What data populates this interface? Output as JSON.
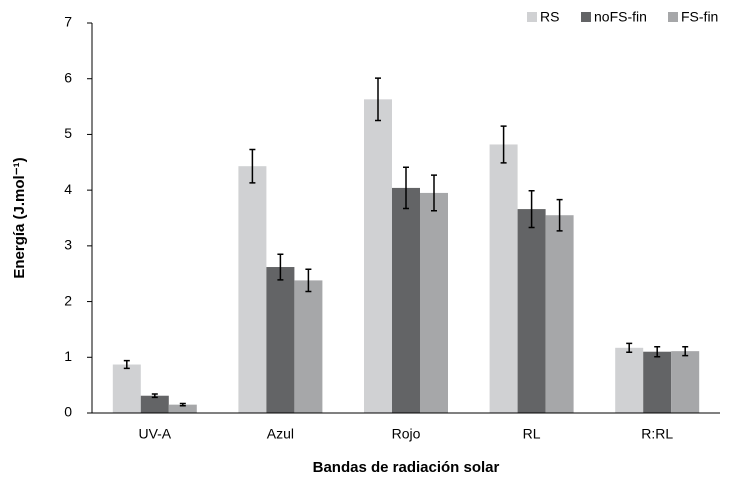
{
  "chart_data": {
    "type": "bar",
    "x_label": "Bandas de radiación solar",
    "y_label": "Energía (J.mol⁻¹)",
    "categories": [
      "UV-A",
      "Azul",
      "Rojo",
      "RL",
      "R:RL"
    ],
    "series": [
      {
        "name": "RS",
        "color": "#d0d1d3",
        "values": [
          0.87,
          4.43,
          5.63,
          4.82,
          1.17
        ],
        "errors": [
          0.07,
          0.3,
          0.38,
          0.33,
          0.08
        ]
      },
      {
        "name": "noFS-fin",
        "color": "#636466",
        "values": [
          0.31,
          2.62,
          4.04,
          3.66,
          1.1
        ],
        "errors": [
          0.03,
          0.23,
          0.37,
          0.33,
          0.09
        ]
      },
      {
        "name": "FS-fin",
        "color": "#a6a7a9",
        "values": [
          0.15,
          2.38,
          3.95,
          3.55,
          1.11
        ],
        "errors": [
          0.02,
          0.2,
          0.32,
          0.28,
          0.08
        ]
      }
    ],
    "ylim": [
      0,
      7
    ],
    "yticks": [
      0,
      1,
      2,
      3,
      4,
      5,
      6,
      7
    ],
    "grid": false,
    "legend": "top-right"
  }
}
